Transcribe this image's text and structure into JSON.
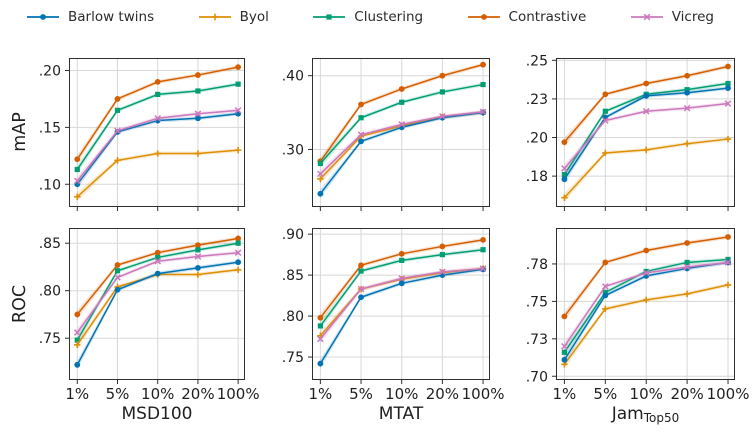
{
  "legend": {
    "items": [
      {
        "label": "Barlow twins",
        "color": "#0173b2",
        "marker": "circle"
      },
      {
        "label": "Byol",
        "color": "#de8f05",
        "marker": "plus"
      },
      {
        "label": "Clustering",
        "color": "#029e73",
        "marker": "square"
      },
      {
        "label": "Contrastive",
        "color": "#d55e00",
        "marker": "circle"
      },
      {
        "label": "Vicreg",
        "color": "#cc78bc",
        "marker": "x"
      }
    ]
  },
  "chart_data": {
    "type": "line",
    "grid": true,
    "legend_position": "top",
    "confidence_bands": true,
    "x_categories": [
      "1%",
      "5%",
      "10%",
      "20%",
      "100%"
    ],
    "series_colors": {
      "Barlow twins": "#0173b2",
      "Byol": "#de8f05",
      "Clustering": "#029e73",
      "Contrastive": "#d55e00",
      "Vicreg": "#cc78bc"
    },
    "series_markers": {
      "Barlow twins": "circle",
      "Byol": "plus",
      "Clustering": "square",
      "Contrastive": "circle",
      "Vicreg": "x"
    },
    "draw_order": [
      "Contrastive",
      "Clustering",
      "Byol",
      "Barlow twins",
      "Vicreg"
    ],
    "plots": [
      {
        "row": 0,
        "col": 0,
        "ylabel": "mAP",
        "xlabel": "",
        "xlabel_sub": "",
        "ylim": [
          0.08,
          0.211
        ],
        "yticks": [
          {
            "v": 0.1,
            "label": ".10"
          },
          {
            "v": 0.15,
            "label": ".15"
          },
          {
            "v": 0.2,
            "label": ".20"
          }
        ],
        "series": [
          {
            "name": "Barlow twins",
            "values": [
              0.1,
              0.146,
              0.156,
              0.158,
              0.162
            ]
          },
          {
            "name": "Byol",
            "values": [
              0.089,
              0.121,
              0.127,
              0.127,
              0.13
            ]
          },
          {
            "name": "Clustering",
            "values": [
              0.113,
              0.165,
              0.179,
              0.182,
              0.188
            ]
          },
          {
            "name": "Contrastive",
            "values": [
              0.122,
              0.175,
              0.19,
              0.196,
              0.203
            ]
          },
          {
            "name": "Vicreg",
            "values": [
              0.103,
              0.147,
              0.158,
              0.162,
              0.165
            ]
          }
        ]
      },
      {
        "row": 0,
        "col": 1,
        "ylabel": "",
        "xlabel": "",
        "xlabel_sub": "",
        "ylim": [
          0.222,
          0.424
        ],
        "yticks": [
          {
            "v": 0.3,
            "label": ".30"
          },
          {
            "v": 0.4,
            "label": ".40"
          }
        ],
        "series": [
          {
            "name": "Barlow twins",
            "values": [
              0.24,
              0.311,
              0.33,
              0.343,
              0.35
            ]
          },
          {
            "name": "Byol",
            "values": [
              0.26,
              0.318,
              0.332,
              0.344,
              0.35
            ]
          },
          {
            "name": "Clustering",
            "values": [
              0.281,
              0.343,
              0.364,
              0.378,
              0.388
            ]
          },
          {
            "name": "Contrastive",
            "values": [
              0.284,
              0.361,
              0.382,
              0.4,
              0.415
            ]
          },
          {
            "name": "Vicreg",
            "values": [
              0.267,
              0.32,
              0.334,
              0.345,
              0.351
            ]
          }
        ]
      },
      {
        "row": 0,
        "col": 2,
        "ylabel": "",
        "xlabel": "",
        "xlabel_sub": "",
        "ylim": [
          0.155,
          0.2515
        ],
        "yticks": [
          {
            "v": 0.175,
            "label": ".18"
          },
          {
            "v": 0.2,
            "label": ".20"
          },
          {
            "v": 0.225,
            "label": ".23"
          },
          {
            "v": 0.25,
            "label": ".25"
          }
        ],
        "series": [
          {
            "name": "Barlow twins",
            "values": [
              0.173,
              0.213,
              0.227,
              0.229,
              0.232
            ]
          },
          {
            "name": "Byol",
            "values": [
              0.161,
              0.19,
              0.192,
              0.196,
              0.199
            ]
          },
          {
            "name": "Clustering",
            "values": [
              0.176,
              0.217,
              0.228,
              0.231,
              0.235
            ]
          },
          {
            "name": "Contrastive",
            "values": [
              0.197,
              0.228,
              0.235,
              0.24,
              0.246
            ]
          },
          {
            "name": "Vicreg",
            "values": [
              0.18,
              0.211,
              0.217,
              0.219,
              0.222
            ]
          }
        ]
      },
      {
        "row": 1,
        "col": 0,
        "ylabel": "ROC",
        "xlabel": "MSD100",
        "xlabel_sub": "",
        "ylim": [
          0.706,
          0.866
        ],
        "yticks": [
          {
            "v": 0.75,
            "label": ".75"
          },
          {
            "v": 0.8,
            "label": ".80"
          },
          {
            "v": 0.85,
            "label": ".85"
          }
        ],
        "series": [
          {
            "name": "Barlow twins",
            "values": [
              0.722,
              0.801,
              0.818,
              0.824,
              0.83
            ]
          },
          {
            "name": "Byol",
            "values": [
              0.743,
              0.804,
              0.817,
              0.817,
              0.822
            ]
          },
          {
            "name": "Clustering",
            "values": [
              0.748,
              0.821,
              0.835,
              0.843,
              0.85
            ]
          },
          {
            "name": "Contrastive",
            "values": [
              0.775,
              0.827,
              0.84,
              0.848,
              0.855
            ]
          },
          {
            "name": "Vicreg",
            "values": [
              0.756,
              0.814,
              0.831,
              0.836,
              0.84
            ]
          }
        ]
      },
      {
        "row": 1,
        "col": 1,
        "ylabel": "",
        "xlabel": "MTAT",
        "xlabel_sub": "",
        "ylim": [
          0.722,
          0.9075
        ],
        "yticks": [
          {
            "v": 0.75,
            "label": ".75"
          },
          {
            "v": 0.8,
            "label": ".80"
          },
          {
            "v": 0.85,
            "label": ".85"
          },
          {
            "v": 0.9,
            "label": ".90"
          }
        ],
        "series": [
          {
            "name": "Barlow twins",
            "values": [
              0.742,
              0.823,
              0.84,
              0.85,
              0.857
            ]
          },
          {
            "name": "Byol",
            "values": [
              0.776,
              0.833,
              0.845,
              0.853,
              0.858
            ]
          },
          {
            "name": "Clustering",
            "values": [
              0.788,
              0.855,
              0.868,
              0.875,
              0.881
            ]
          },
          {
            "name": "Contrastive",
            "values": [
              0.798,
              0.862,
              0.876,
              0.885,
              0.893
            ]
          },
          {
            "name": "Vicreg",
            "values": [
              0.772,
              0.833,
              0.846,
              0.854,
              0.858
            ]
          }
        ]
      },
      {
        "row": 1,
        "col": 2,
        "ylabel": "",
        "xlabel": "Jam",
        "xlabel_sub": "Top50",
        "ylim": [
          0.6975,
          0.799
        ],
        "yticks": [
          {
            "v": 0.7,
            "label": ".70"
          },
          {
            "v": 0.725,
            "label": ".73"
          },
          {
            "v": 0.75,
            "label": ".75"
          },
          {
            "v": 0.775,
            "label": ".78"
          }
        ],
        "series": [
          {
            "name": "Barlow twins",
            "values": [
              0.711,
              0.754,
              0.767,
              0.772,
              0.776
            ]
          },
          {
            "name": "Byol",
            "values": [
              0.708,
              0.745,
              0.751,
              0.755,
              0.761
            ]
          },
          {
            "name": "Clustering",
            "values": [
              0.716,
              0.756,
              0.77,
              0.776,
              0.778
            ]
          },
          {
            "name": "Contrastive",
            "values": [
              0.74,
              0.776,
              0.784,
              0.789,
              0.793
            ]
          },
          {
            "name": "Vicreg",
            "values": [
              0.72,
              0.76,
              0.769,
              0.773,
              0.776
            ]
          }
        ]
      }
    ]
  }
}
